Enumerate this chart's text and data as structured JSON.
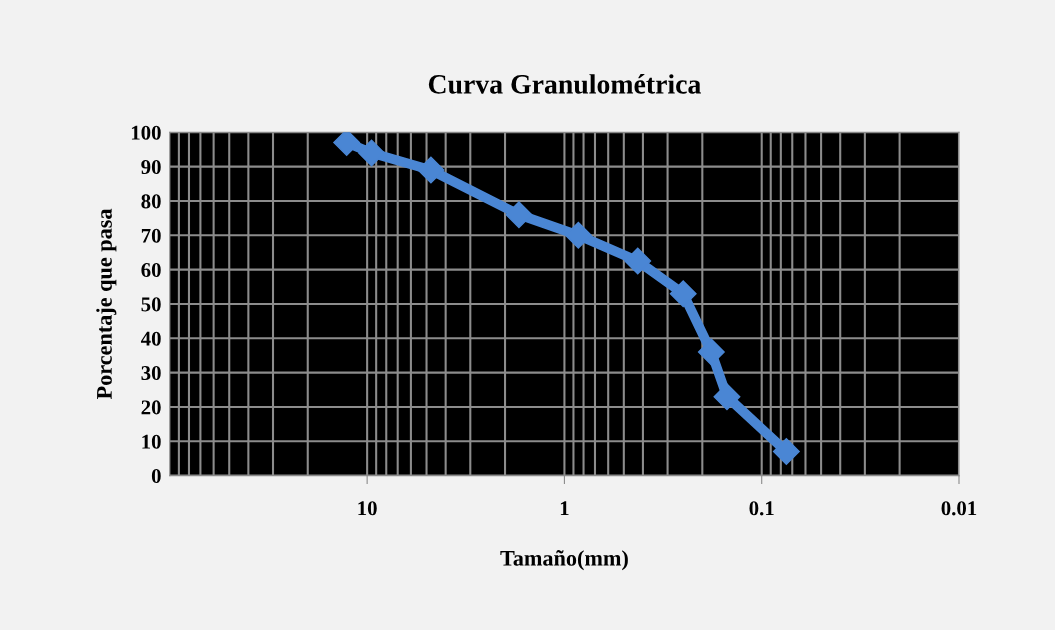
{
  "chart_data": {
    "type": "line",
    "title": "Curva Granulométrica",
    "xlabel": "Tamaño(mm)",
    "ylabel": "Porcentaje que pasa",
    "x": [
      12.7,
      9.5,
      4.75,
      1.7,
      0.85,
      0.425,
      0.25,
      0.18,
      0.15,
      0.075
    ],
    "series": [
      {
        "color": "#4a86d4",
        "values": [
          97,
          94,
          89,
          76,
          70,
          62.5,
          53,
          36,
          23,
          7
        ]
      }
    ],
    "log": "x",
    "xlim": [
      100,
      0.01
    ],
    "xticks": [
      10,
      1,
      0.1,
      0.01
    ],
    "ylim": [
      0,
      100
    ],
    "yticks": [
      0,
      10,
      20,
      30,
      40,
      50,
      60,
      70,
      80,
      90,
      100
    ],
    "grid": true,
    "marker": "diamond",
    "line_style": "solid"
  }
}
